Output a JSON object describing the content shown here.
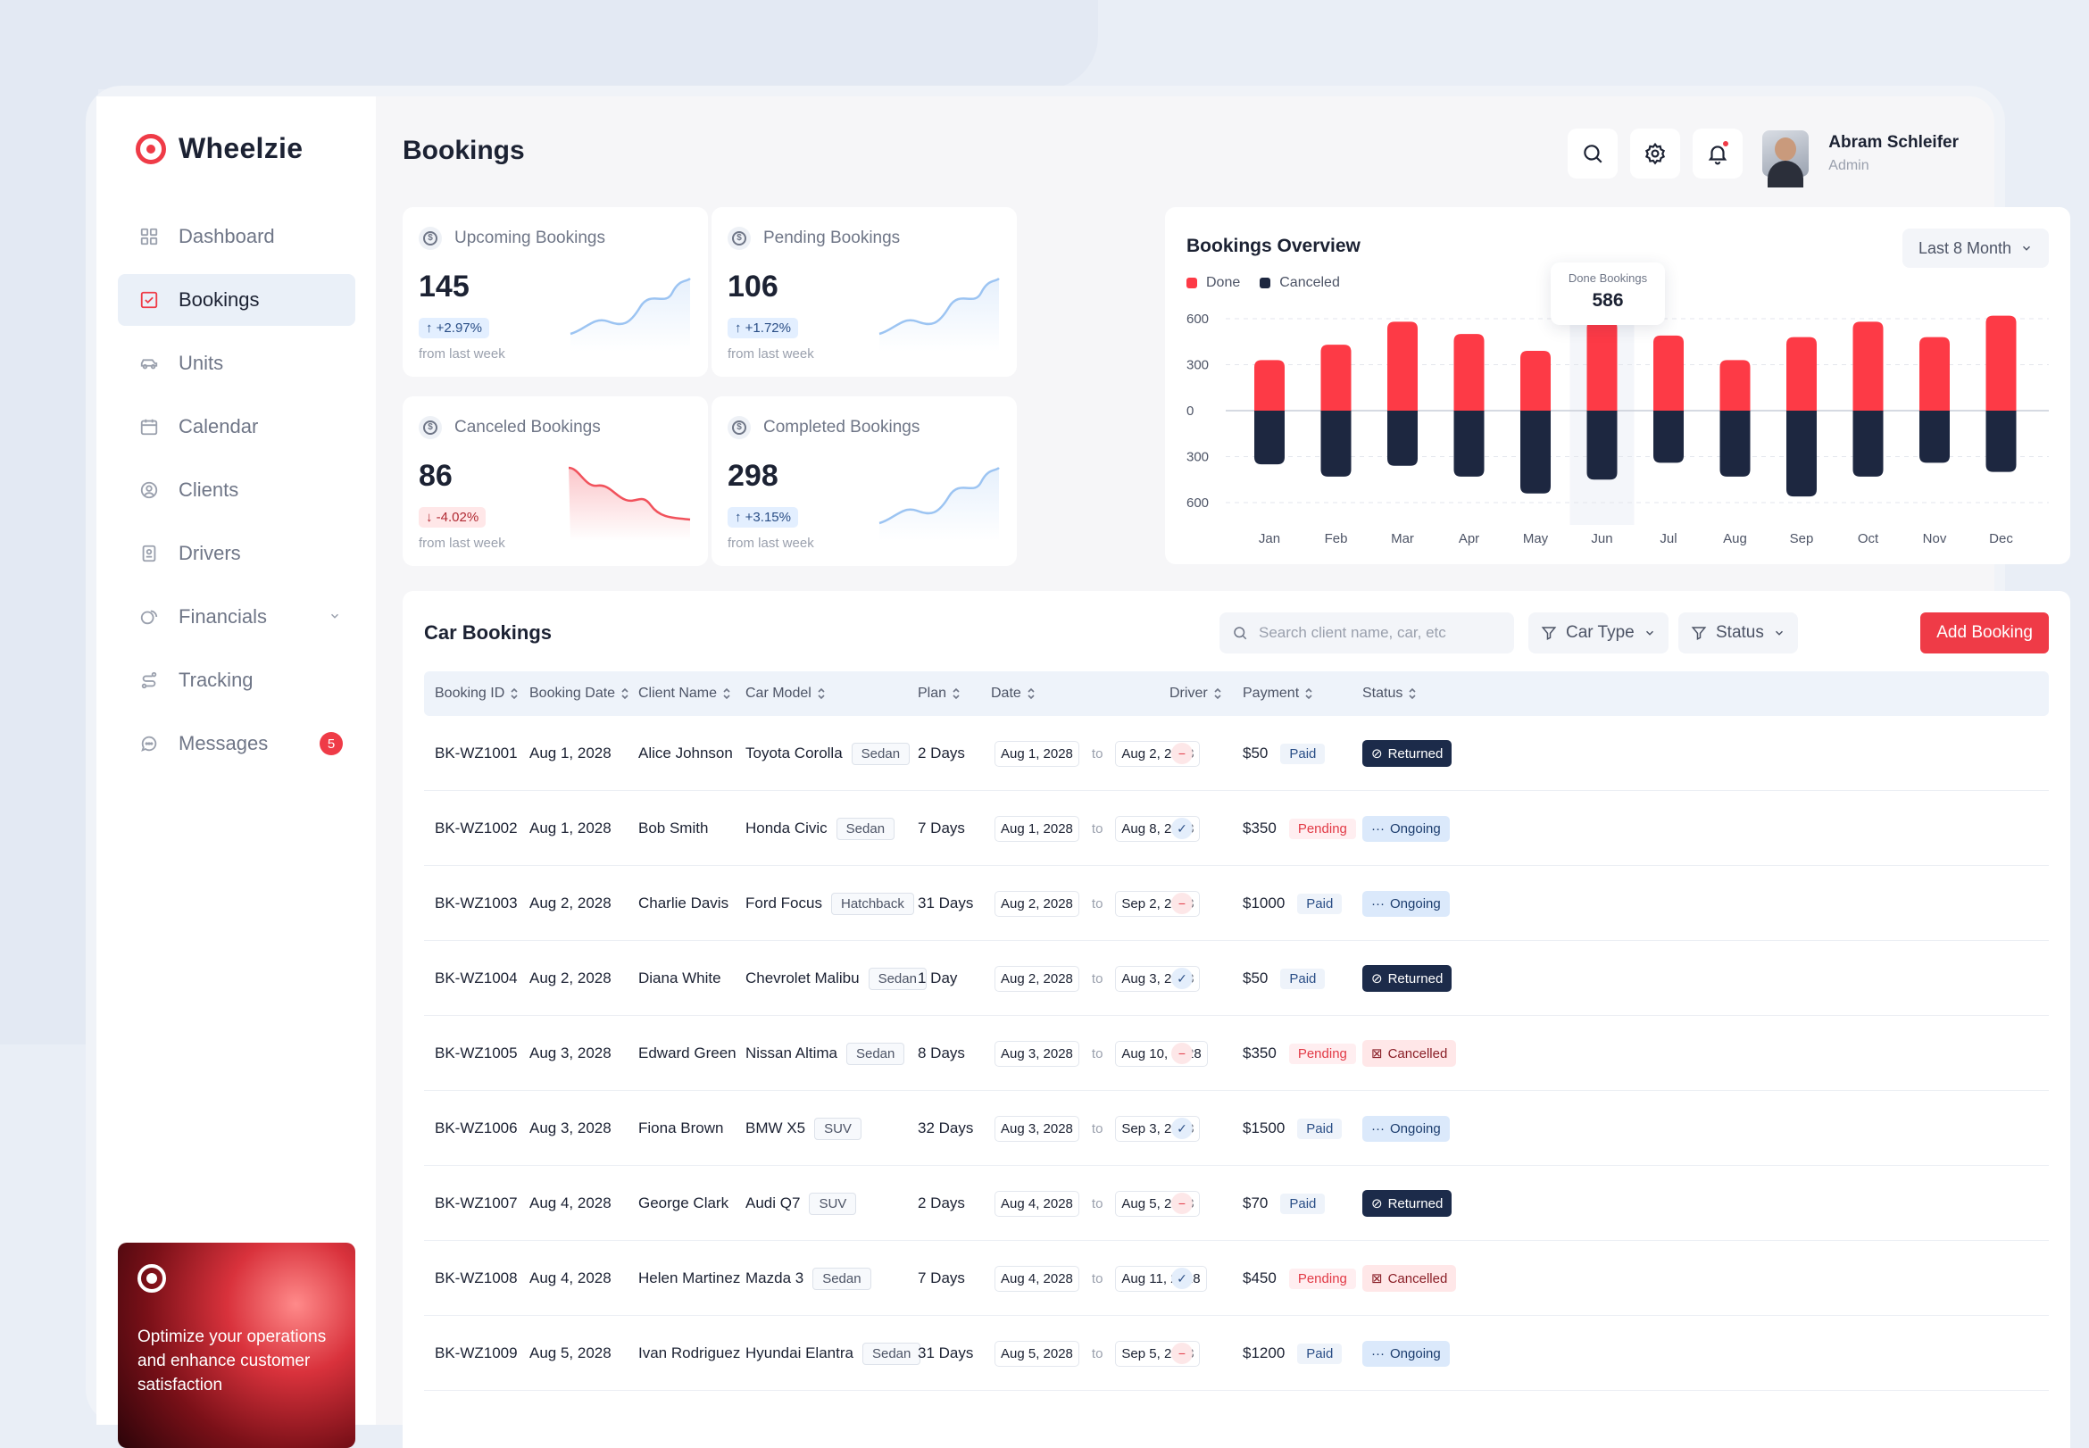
{
  "brand": {
    "name": "Wheelzie"
  },
  "sidebar": {
    "items": [
      {
        "label": "Dashboard",
        "icon": "grid-icon"
      },
      {
        "label": "Bookings",
        "icon": "checkbox-icon",
        "active": true
      },
      {
        "label": "Units",
        "icon": "car-icon"
      },
      {
        "label": "Calendar",
        "icon": "calendar-icon"
      },
      {
        "label": "Clients",
        "icon": "user-circle-icon"
      },
      {
        "label": "Drivers",
        "icon": "id-card-icon"
      },
      {
        "label": "Financials",
        "icon": "coins-icon"
      },
      {
        "label": "Tracking",
        "icon": "route-icon"
      },
      {
        "label": "Messages",
        "icon": "chat-icon",
        "badge": "5"
      }
    ],
    "promo_text": "Optimize your operations and enhance customer satisfaction"
  },
  "header": {
    "title": "Bookings",
    "user": {
      "name": "Abram Schleifer",
      "role": "Admin"
    }
  },
  "stats": [
    {
      "label": "Upcoming Bookings",
      "value": "145",
      "change": "+2.97%",
      "trend": "up",
      "sub": "from last week"
    },
    {
      "label": "Pending Bookings",
      "value": "106",
      "change": "+1.72%",
      "trend": "up",
      "sub": "from last week"
    },
    {
      "label": "Canceled Bookings",
      "value": "86",
      "change": "-4.02%",
      "trend": "down",
      "sub": "from last week"
    },
    {
      "label": "Completed Bookings",
      "value": "298",
      "change": "+3.15%",
      "trend": "up",
      "sub": "from last week"
    }
  ],
  "overview": {
    "title": "Bookings Overview",
    "range_label": "Last 8 Month",
    "tooltip": {
      "label": "Done Bookings",
      "value": "586"
    }
  },
  "chart_data": {
    "type": "bar",
    "title": "Bookings Overview",
    "categories": [
      "Jan",
      "Feb",
      "Mar",
      "Apr",
      "May",
      "Jun",
      "Jul",
      "Aug",
      "Sep",
      "Oct",
      "Nov",
      "Dec"
    ],
    "series": [
      {
        "name": "Done",
        "color": "#fd3a46",
        "values": [
          330,
          430,
          580,
          500,
          390,
          586,
          490,
          330,
          480,
          580,
          480,
          620
        ]
      },
      {
        "name": "Canceled",
        "color": "#1d2740",
        "values": [
          350,
          430,
          360,
          430,
          540,
          450,
          340,
          430,
          560,
          430,
          340,
          400
        ]
      }
    ],
    "y_ticks": [
      "600",
      "300",
      "0",
      "300",
      "600"
    ],
    "ylim": [
      -600,
      600
    ],
    "highlight": "Jun",
    "legend": "top-left",
    "grid": true
  },
  "table": {
    "title": "Car Bookings",
    "search_placeholder": "Search client name, car, etc",
    "filters": [
      "Car Type",
      "Status"
    ],
    "add_label": "Add Booking",
    "date_to": "to",
    "columns": [
      "Booking ID",
      "Booking Date",
      "Client Name",
      "Car Model",
      "Plan",
      "Date",
      "Driver",
      "Payment",
      "Status"
    ],
    "rows": [
      {
        "id": "BK-WZ1001",
        "booking_date": "Aug 1, 2028",
        "client": "Alice Johnson",
        "car": "Toyota Corolla",
        "car_type": "Sedan",
        "plan": "2 Days",
        "from": "Aug 1, 2028",
        "to": "Aug 2, 2028",
        "driver": false,
        "amount": "$50",
        "payment": "Paid",
        "status": "Returned"
      },
      {
        "id": "BK-WZ1002",
        "booking_date": "Aug 1, 2028",
        "client": "Bob Smith",
        "car": "Honda Civic",
        "car_type": "Sedan",
        "plan": "7 Days",
        "from": "Aug 1, 2028",
        "to": "Aug 8, 2028",
        "driver": true,
        "amount": "$350",
        "payment": "Pending",
        "status": "Ongoing"
      },
      {
        "id": "BK-WZ1003",
        "booking_date": "Aug 2, 2028",
        "client": "Charlie Davis",
        "car": "Ford Focus",
        "car_type": "Hatchback",
        "plan": "31 Days",
        "from": "Aug 2, 2028",
        "to": "Sep 2, 2028",
        "driver": false,
        "amount": "$1000",
        "payment": "Paid",
        "status": "Ongoing"
      },
      {
        "id": "BK-WZ1004",
        "booking_date": "Aug 2, 2028",
        "client": "Diana White",
        "car": "Chevrolet Malibu",
        "car_type": "Sedan",
        "plan": "1 Day",
        "from": "Aug 2, 2028",
        "to": "Aug 3, 2028",
        "driver": true,
        "amount": "$50",
        "payment": "Paid",
        "status": "Returned"
      },
      {
        "id": "BK-WZ1005",
        "booking_date": "Aug 3, 2028",
        "client": "Edward Green",
        "car": "Nissan Altima",
        "car_type": "Sedan",
        "plan": "8 Days",
        "from": "Aug 3, 2028",
        "to": "Aug 10, 2028",
        "driver": false,
        "amount": "$350",
        "payment": "Pending",
        "status": "Cancelled"
      },
      {
        "id": "BK-WZ1006",
        "booking_date": "Aug 3, 2028",
        "client": "Fiona Brown",
        "car": "BMW X5",
        "car_type": "SUV",
        "plan": "32 Days",
        "from": "Aug 3, 2028",
        "to": "Sep 3, 2028",
        "driver": true,
        "amount": "$1500",
        "payment": "Paid",
        "status": "Ongoing"
      },
      {
        "id": "BK-WZ1007",
        "booking_date": "Aug 4, 2028",
        "client": "George Clark",
        "car": "Audi Q7",
        "car_type": "SUV",
        "plan": "2 Days",
        "from": "Aug 4, 2028",
        "to": "Aug 5, 2028",
        "driver": false,
        "amount": "$70",
        "payment": "Paid",
        "status": "Returned"
      },
      {
        "id": "BK-WZ1008",
        "booking_date": "Aug 4, 2028",
        "client": "Helen Martinez",
        "car": "Mazda 3",
        "car_type": "Sedan",
        "plan": "7 Days",
        "from": "Aug 4, 2028",
        "to": "Aug 11, 2028",
        "driver": true,
        "amount": "$450",
        "payment": "Pending",
        "status": "Cancelled"
      },
      {
        "id": "BK-WZ1009",
        "booking_date": "Aug 5, 2028",
        "client": "Ivan Rodriguez",
        "car": "Hyundai Elantra",
        "car_type": "Sedan",
        "plan": "31 Days",
        "from": "Aug 5, 2028",
        "to": "Sep 5, 2028",
        "driver": false,
        "amount": "$1200",
        "payment": "Paid",
        "status": "Ongoing"
      }
    ]
  }
}
